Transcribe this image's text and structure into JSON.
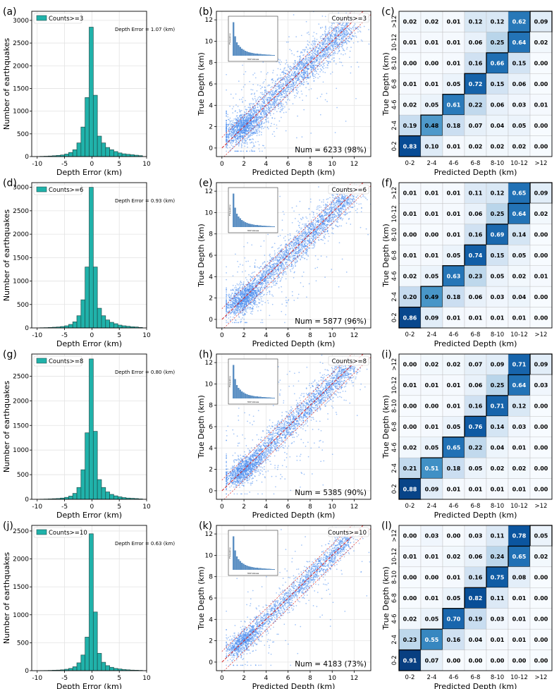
{
  "figure": {
    "rows": [
      {
        "label_hist": "(a)",
        "label_scatter": "(b)",
        "label_cm": "(c)",
        "legend": "Counts>=3",
        "depth_error": "Depth Error = 1.07 (km)",
        "num": "Num = 6233 (98%)"
      },
      {
        "label_hist": "(d)",
        "label_scatter": "(e)",
        "label_cm": "(f)",
        "legend": "Counts>=6",
        "depth_error": "Depth Error = 0.93 (km)",
        "num": "Num = 5877 (96%)"
      },
      {
        "label_hist": "(g)",
        "label_scatter": "(h)",
        "label_cm": "(i)",
        "legend": "Counts>=8",
        "depth_error": "Depth Error = 0.80 (km)",
        "num": "Num = 5385 (90%)"
      },
      {
        "label_hist": "(j)",
        "label_scatter": "(k)",
        "label_cm": "(l)",
        "legend": "Counts>=10",
        "depth_error": "Depth Error = 0.63 (km)",
        "num": "Num = 4183 (73%)"
      }
    ]
  },
  "chart_data": [
    {
      "type": "bar",
      "panel": "(a)",
      "series": [
        {
          "name": "Counts>=3"
        }
      ],
      "xlabel": "Depth Error (km)",
      "ylabel": "Number of earthquakes",
      "xlim": [
        -11,
        10
      ],
      "ylim": [
        0,
        3200
      ],
      "xticks": [
        -10,
        -5,
        0,
        5,
        10
      ],
      "yticks": [
        0,
        500,
        1000,
        1500,
        2000,
        2500,
        3000
      ],
      "annotation": "Depth Error = 1.07 (km)",
      "grid": true,
      "legend_position": "top-left",
      "bin_edges": [
        -9.5,
        -8.75,
        -8.0,
        -7.25,
        -6.5,
        -5.75,
        -5.0,
        -4.25,
        -3.5,
        -2.75,
        -2.0,
        -1.25,
        -0.5,
        0.25,
        1.0,
        1.75,
        2.5,
        3.25,
        4.0,
        4.75,
        5.5,
        6.25,
        7.0,
        7.75,
        8.5,
        9.25
      ],
      "values": [
        5,
        8,
        12,
        18,
        25,
        35,
        55,
        90,
        150,
        300,
        650,
        1300,
        2850,
        1350,
        450,
        300,
        200,
        150,
        110,
        80,
        60,
        50,
        40,
        30,
        20
      ]
    },
    {
      "type": "scatter",
      "panel": "(b)",
      "xlabel": "Predicted Depth (km)",
      "ylabel": "True Depth (km)",
      "xlim": [
        -0.5,
        13.5
      ],
      "ylim": [
        -0.8,
        12.8
      ],
      "xticks": [
        0,
        2,
        4,
        6,
        8,
        10,
        12
      ],
      "yticks": [
        0,
        2,
        4,
        6,
        8,
        10,
        12
      ],
      "series": [
        {
          "name": "Counts>=3"
        }
      ],
      "num": "Num = 6233 (98%)",
      "point_count": 6233,
      "lines": [
        {
          "style": "dashed",
          "color": "#d62728",
          "equation": "y = x"
        },
        {
          "style": "dotted",
          "color": "#d62728",
          "equation": "y = x + 1"
        },
        {
          "style": "dotted",
          "color": "#d62728",
          "equation": "y = x - 1"
        }
      ],
      "inset": {
        "type": "histogram",
        "xlabel": "300 Values",
        "ylabel": "Frequency"
      }
    },
    {
      "type": "heatmap",
      "panel": "(c)",
      "xlabel": "Predicted Depth (km)",
      "ylabel": "True Depth (km)",
      "x_categories": [
        "0-2",
        "2-4",
        "4-6",
        "6-8",
        "8-10",
        "10-12",
        ">12"
      ],
      "y_categories": [
        "0-2",
        "2-4",
        "4-6",
        "6-8",
        "8-10",
        "10-12",
        ">12"
      ],
      "values_top_to_bottom": [
        [
          0.02,
          0.02,
          0.01,
          0.12,
          0.12,
          0.62,
          0.09
        ],
        [
          0.01,
          0.01,
          0.01,
          0.06,
          0.25,
          0.64,
          0.02
        ],
        [
          0.0,
          0.0,
          0.01,
          0.16,
          0.66,
          0.15,
          0.0
        ],
        [
          0.01,
          0.01,
          0.05,
          0.72,
          0.15,
          0.06,
          0.0
        ],
        [
          0.02,
          0.05,
          0.61,
          0.22,
          0.06,
          0.03,
          0.01
        ],
        [
          0.19,
          0.48,
          0.18,
          0.07,
          0.04,
          0.05,
          0.0
        ],
        [
          0.83,
          0.1,
          0.01,
          0.02,
          0.02,
          0.02,
          0.0
        ]
      ]
    },
    {
      "type": "bar",
      "panel": "(d)",
      "series": [
        {
          "name": "Counts>=6"
        }
      ],
      "xlabel": "Depth Error (km)",
      "ylabel": "Number of earthquakes",
      "xlim": [
        -11,
        10
      ],
      "ylim": [
        0,
        3100
      ],
      "xticks": [
        -10,
        -5,
        0,
        5,
        10
      ],
      "yticks": [
        0,
        500,
        1000,
        1500,
        2000,
        2500,
        3000
      ],
      "annotation": "Depth Error = 0.93 (km)",
      "grid": true,
      "legend_position": "top-left",
      "bin_edges": [
        -9.5,
        -8.75,
        -8.0,
        -7.25,
        -6.5,
        -5.75,
        -5.0,
        -4.25,
        -3.5,
        -2.75,
        -2.0,
        -1.25,
        -0.5,
        0.25,
        1.0,
        1.75,
        2.5,
        3.25,
        4.0,
        4.75,
        5.5,
        6.25,
        7.0,
        7.75,
        8.5,
        9.25
      ],
      "values": [
        4,
        6,
        10,
        15,
        20,
        30,
        45,
        75,
        130,
        260,
        600,
        1300,
        3000,
        1300,
        420,
        260,
        170,
        120,
        90,
        60,
        45,
        35,
        25,
        20,
        10
      ]
    },
    {
      "type": "scatter",
      "panel": "(e)",
      "xlabel": "Predicted Depth (km)",
      "ylabel": "True Depth (km)",
      "xlim": [
        -0.5,
        13.5
      ],
      "ylim": [
        -0.8,
        12.8
      ],
      "xticks": [
        0,
        2,
        4,
        6,
        8,
        10,
        12
      ],
      "yticks": [
        0,
        2,
        4,
        6,
        8,
        10,
        12
      ],
      "series": [
        {
          "name": "Counts>=6"
        }
      ],
      "num": "Num = 5877 (96%)",
      "point_count": 5877,
      "lines": [
        {
          "style": "dashed",
          "color": "#d62728",
          "equation": "y = x"
        },
        {
          "style": "dotted",
          "color": "#d62728",
          "equation": "y = x + 1"
        },
        {
          "style": "dotted",
          "color": "#d62728",
          "equation": "y = x - 1"
        }
      ],
      "inset": {
        "type": "histogram",
        "xlabel": "300 Values",
        "ylabel": "Frequency"
      }
    },
    {
      "type": "heatmap",
      "panel": "(f)",
      "xlabel": "Predicted Depth (km)",
      "ylabel": "True Depth (km)",
      "x_categories": [
        "0-2",
        "2-4",
        "4-6",
        "6-8",
        "8-10",
        "10-12",
        ">12"
      ],
      "y_categories": [
        "0-2",
        "2-4",
        "4-6",
        "6-8",
        "8-10",
        "10-12",
        ">12"
      ],
      "values_top_to_bottom": [
        [
          0.01,
          0.01,
          0.01,
          0.11,
          0.12,
          0.65,
          0.09
        ],
        [
          0.01,
          0.01,
          0.01,
          0.06,
          0.25,
          0.64,
          0.02
        ],
        [
          0.0,
          0.0,
          0.01,
          0.16,
          0.69,
          0.14,
          0.0
        ],
        [
          0.01,
          0.01,
          0.05,
          0.74,
          0.15,
          0.05,
          0.0
        ],
        [
          0.02,
          0.05,
          0.63,
          0.23,
          0.05,
          0.02,
          0.01
        ],
        [
          0.2,
          0.49,
          0.18,
          0.06,
          0.03,
          0.04,
          0.0
        ],
        [
          0.86,
          0.09,
          0.01,
          0.01,
          0.01,
          0.01,
          0.0
        ]
      ]
    },
    {
      "type": "bar",
      "panel": "(g)",
      "series": [
        {
          "name": "Counts>=8"
        }
      ],
      "xlabel": "Depth Error (km)",
      "ylabel": "Number of earthquakes",
      "xlim": [
        -11,
        10
      ],
      "ylim": [
        0,
        2950
      ],
      "xticks": [
        -10,
        -5,
        0,
        5,
        10
      ],
      "yticks": [
        0,
        500,
        1000,
        1500,
        2000,
        2500
      ],
      "annotation": "Depth Error = 0.80 (km)",
      "grid": true,
      "legend_position": "top-left",
      "bin_edges": [
        -9.5,
        -8.75,
        -8.0,
        -7.25,
        -6.5,
        -5.75,
        -5.0,
        -4.25,
        -3.5,
        -2.75,
        -2.0,
        -1.25,
        -0.5,
        0.25,
        1.0,
        1.75,
        2.5,
        3.25,
        4.0,
        4.75,
        5.5,
        6.25,
        7.0,
        7.75,
        8.5,
        9.25
      ],
      "values": [
        3,
        5,
        8,
        12,
        16,
        25,
        40,
        65,
        120,
        240,
        600,
        1350,
        2850,
        1380,
        400,
        240,
        150,
        100,
        70,
        50,
        35,
        25,
        20,
        15,
        8
      ]
    },
    {
      "type": "scatter",
      "panel": "(h)",
      "xlabel": "Predicted Depth (km)",
      "ylabel": "True Depth (km)",
      "xlim": [
        -0.5,
        13.5
      ],
      "ylim": [
        -0.8,
        12.8
      ],
      "xticks": [
        0,
        2,
        4,
        6,
        8,
        10,
        12
      ],
      "yticks": [
        0,
        2,
        4,
        6,
        8,
        10,
        12
      ],
      "series": [
        {
          "name": "Counts>=8"
        }
      ],
      "num": "Num = 5385 (90%)",
      "point_count": 5385,
      "lines": [
        {
          "style": "dashed",
          "color": "#d62728",
          "equation": "y = x"
        },
        {
          "style": "dotted",
          "color": "#d62728",
          "equation": "y = x + 1"
        },
        {
          "style": "dotted",
          "color": "#d62728",
          "equation": "y = x - 1"
        }
      ],
      "inset": {
        "type": "histogram",
        "xlabel": "300 Values",
        "ylabel": "Frequency"
      }
    },
    {
      "type": "heatmap",
      "panel": "(i)",
      "xlabel": "Predicted Depth (km)",
      "ylabel": "True Depth (km)",
      "x_categories": [
        "0-2",
        "2-4",
        "4-6",
        "6-8",
        "8-10",
        "10-12",
        ">12"
      ],
      "y_categories": [
        "0-2",
        "2-4",
        "4-6",
        "6-8",
        "8-10",
        "10-12",
        ">12"
      ],
      "values_top_to_bottom": [
        [
          0.0,
          0.02,
          0.02,
          0.07,
          0.09,
          0.71,
          0.09
        ],
        [
          0.01,
          0.01,
          0.01,
          0.06,
          0.25,
          0.64,
          0.03
        ],
        [
          0.0,
          0.0,
          0.01,
          0.16,
          0.71,
          0.12,
          0.0
        ],
        [
          0.0,
          0.01,
          0.05,
          0.76,
          0.14,
          0.03,
          0.0
        ],
        [
          0.02,
          0.05,
          0.65,
          0.22,
          0.04,
          0.01,
          0.0
        ],
        [
          0.21,
          0.51,
          0.18,
          0.05,
          0.02,
          0.02,
          0.0
        ],
        [
          0.88,
          0.09,
          0.01,
          0.01,
          0.01,
          0.01,
          0.0
        ]
      ]
    },
    {
      "type": "bar",
      "panel": "(j)",
      "series": [
        {
          "name": "Counts>=10"
        }
      ],
      "xlabel": "Depth Error (km)",
      "ylabel": "Number of earthquakes",
      "xlim": [
        -11,
        10
      ],
      "ylim": [
        0,
        2600
      ],
      "xticks": [
        -10,
        -5,
        0,
        5,
        10
      ],
      "yticks": [
        0,
        500,
        1000,
        1500,
        2000,
        2500
      ],
      "annotation": "Depth Error = 0.63 (km)",
      "grid": true,
      "legend_position": "top-left",
      "bin_edges": [
        -9.5,
        -8.75,
        -8.0,
        -7.25,
        -6.5,
        -5.75,
        -5.0,
        -4.25,
        -3.5,
        -2.75,
        -2.0,
        -1.25,
        -0.5,
        0.25,
        1.0,
        1.75,
        2.5,
        3.25,
        4.0,
        4.75,
        5.5,
        6.25,
        7.0,
        7.75,
        8.5,
        9.25
      ],
      "values": [
        2,
        3,
        5,
        8,
        10,
        15,
        25,
        40,
        70,
        140,
        280,
        600,
        2450,
        1050,
        310,
        150,
        90,
        60,
        40,
        30,
        20,
        15,
        10,
        8,
        5
      ]
    },
    {
      "type": "scatter",
      "panel": "(k)",
      "xlabel": "Predicted Depth (km)",
      "ylabel": "True Depth (km)",
      "xlim": [
        -0.5,
        13.5
      ],
      "ylim": [
        -0.8,
        12.8
      ],
      "xticks": [
        0,
        2,
        4,
        6,
        8,
        10,
        12
      ],
      "yticks": [
        0,
        2,
        4,
        6,
        8,
        10,
        12
      ],
      "series": [
        {
          "name": "Counts>=10"
        }
      ],
      "num": "Num = 4183 (73%)",
      "point_count": 4183,
      "lines": [
        {
          "style": "dashed",
          "color": "#d62728",
          "equation": "y = x"
        },
        {
          "style": "dotted",
          "color": "#d62728",
          "equation": "y = x + 1"
        },
        {
          "style": "dotted",
          "color": "#d62728",
          "equation": "y = x - 1"
        }
      ],
      "inset": {
        "type": "histogram",
        "xlabel": "300 Values",
        "ylabel": "Frequency"
      }
    },
    {
      "type": "heatmap",
      "panel": "(l)",
      "xlabel": "Predicted Depth (km)",
      "ylabel": "True Depth (km)",
      "x_categories": [
        "0-2",
        "2-4",
        "4-6",
        "6-8",
        "8-10",
        "10-12",
        ">12"
      ],
      "y_categories": [
        "0-2",
        "2-4",
        "4-6",
        "6-8",
        "8-10",
        "10-12",
        ">12"
      ],
      "values_top_to_bottom": [
        [
          0.0,
          0.03,
          0.0,
          0.03,
          0.11,
          0.78,
          0.05
        ],
        [
          0.01,
          0.01,
          0.02,
          0.06,
          0.24,
          0.65,
          0.02
        ],
        [
          0.0,
          0.0,
          0.01,
          0.16,
          0.75,
          0.08,
          0.0
        ],
        [
          0.0,
          0.01,
          0.05,
          0.82,
          0.11,
          0.01,
          0.0
        ],
        [
          0.02,
          0.05,
          0.7,
          0.19,
          0.03,
          0.01,
          0.0
        ],
        [
          0.23,
          0.55,
          0.16,
          0.04,
          0.01,
          0.01,
          0.0
        ],
        [
          0.91,
          0.07,
          0.0,
          0.0,
          0.0,
          0.0,
          0.0
        ]
      ]
    }
  ],
  "colors": {
    "hist_fill": "#20b2aa",
    "hist_edge": "#1f4f4c",
    "scatter_point": "#4f8ff0",
    "reference_line": "#d62728",
    "heatmap_low": "#f7fbff",
    "heatmap_high": "#08519c",
    "inset_bar": "#5b8fc3"
  }
}
